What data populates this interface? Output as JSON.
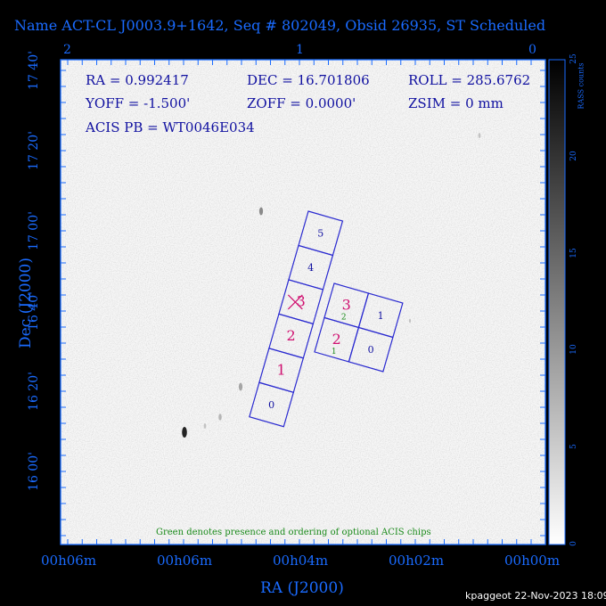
{
  "title": "Name ACT-CL J0003.9+1642, Seq # 802049, Obsid 26935, ST Scheduled",
  "info": {
    "ra": "RA = 0.992417",
    "dec": "DEC = 16.701806",
    "roll": "ROLL = 285.6762",
    "yoff": "YOFF = -1.500'",
    "zoff": "ZOFF = 0.0000'",
    "zsim": "ZSIM = 0 mm",
    "acis_pb": "ACIS PB = WT0046E034"
  },
  "footnote": "Green denotes presence and ordering of optional ACIS chips",
  "credit": "kpaggeot 22-Nov-2023 18:09",
  "colors": {
    "axis": "#1a6bff",
    "chip_outline": "#2a2ad0",
    "chip_label_required": "#d01070",
    "chip_label_other": "#1010a0",
    "optional": "#1a8a1a"
  },
  "chart_data": {
    "type": "image",
    "xlabel": "RA (J2000)",
    "ylabel": "Dec (J2000)",
    "x_ticks": [
      "00h06m",
      "00h06m",
      "00h04m",
      "00h02m",
      "00h00m"
    ],
    "y_ticks": [
      "17 40'",
      "17 20'",
      "17 00'",
      "16 40'",
      "16 20'",
      "16 00'"
    ],
    "top_ticks": [
      "2",
      "1",
      "0"
    ],
    "colorbar": {
      "label": "RASS counts",
      "range": [
        0,
        25
      ],
      "ticks": [
        "0",
        "5",
        "10",
        "15",
        "20",
        "25"
      ]
    },
    "chips": {
      "column": [
        {
          "label": "5",
          "style": "other"
        },
        {
          "label": "4",
          "style": "other"
        },
        {
          "label": "3",
          "style": "required"
        },
        {
          "label": "2",
          "style": "required"
        },
        {
          "label": "1",
          "style": "required"
        },
        {
          "label": "0",
          "style": "other"
        }
      ],
      "grid": [
        {
          "label": "3",
          "style": "required",
          "optional_label": "2"
        },
        {
          "label": "1",
          "style": "other",
          "optional_label": ""
        },
        {
          "label": "2",
          "style": "required",
          "optional_label": "1"
        },
        {
          "label": "0",
          "style": "other",
          "optional_label": ""
        }
      ]
    }
  }
}
